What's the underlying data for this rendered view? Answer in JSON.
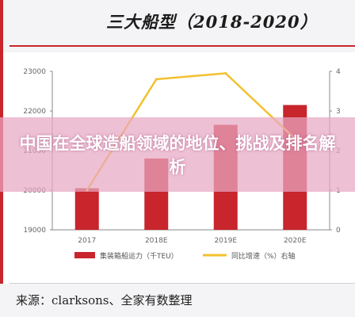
{
  "header": {
    "title": "三大船型（2018-2020）"
  },
  "overlay": {
    "text": "中国在全球造船领域的地位、挑战及排名解析"
  },
  "footer": {
    "source": "来源：clarksons、全家有数整理"
  },
  "colors": {
    "bar": "#c8252c",
    "line": "#f2c12e",
    "accent": "#c8252c"
  },
  "chart_data": {
    "type": "bar",
    "categories": [
      "2017",
      "2018E",
      "2019E",
      "2020E"
    ],
    "series": [
      {
        "name": "集装箱船运力（千TEU）",
        "type": "bar",
        "axis": "left",
        "values": [
          20050,
          20800,
          21650,
          22150
        ]
      },
      {
        "name": "同比增速（%）右轴",
        "type": "line",
        "axis": "right",
        "values": [
          1.0,
          3.8,
          3.95,
          2.3
        ]
      }
    ],
    "ylim_left": [
      19000,
      23000
    ],
    "yticks_left": [
      "23000",
      "22000",
      "21000",
      "20000",
      "19000"
    ],
    "ylim_right": [
      0,
      4
    ],
    "yticks_right": [
      "4",
      "3",
      "2",
      "1",
      "0"
    ],
    "grid": false,
    "legend": "bottom"
  }
}
